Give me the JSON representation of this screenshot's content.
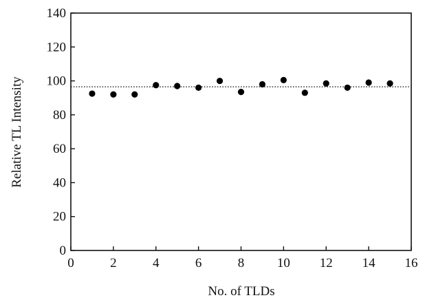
{
  "chart_data": {
    "type": "scatter",
    "title": "",
    "xlabel": "No. of TLDs",
    "ylabel": "Relative TL Intensity",
    "xlim": [
      0,
      16
    ],
    "ylim": [
      0,
      140
    ],
    "xticks": [
      "0",
      "2",
      "4",
      "6",
      "8",
      "10",
      "12",
      "14",
      "16"
    ],
    "yticks": [
      "0",
      "20",
      "40",
      "60",
      "80",
      "100",
      "120",
      "140"
    ],
    "grid": false,
    "reference_line": {
      "y": 96.5,
      "style": "dotted"
    },
    "series": [
      {
        "x": [
          1,
          2,
          3,
          4,
          5,
          6,
          7,
          8,
          9,
          10,
          11,
          12,
          13,
          14,
          15
        ],
        "y": [
          92.5,
          92,
          92,
          97.5,
          97,
          96,
          100,
          93.5,
          98,
          100.5,
          93,
          98.5,
          96,
          99,
          98.5
        ]
      }
    ],
    "colors": {
      "marker": "#000000",
      "axis": "#111111"
    }
  }
}
